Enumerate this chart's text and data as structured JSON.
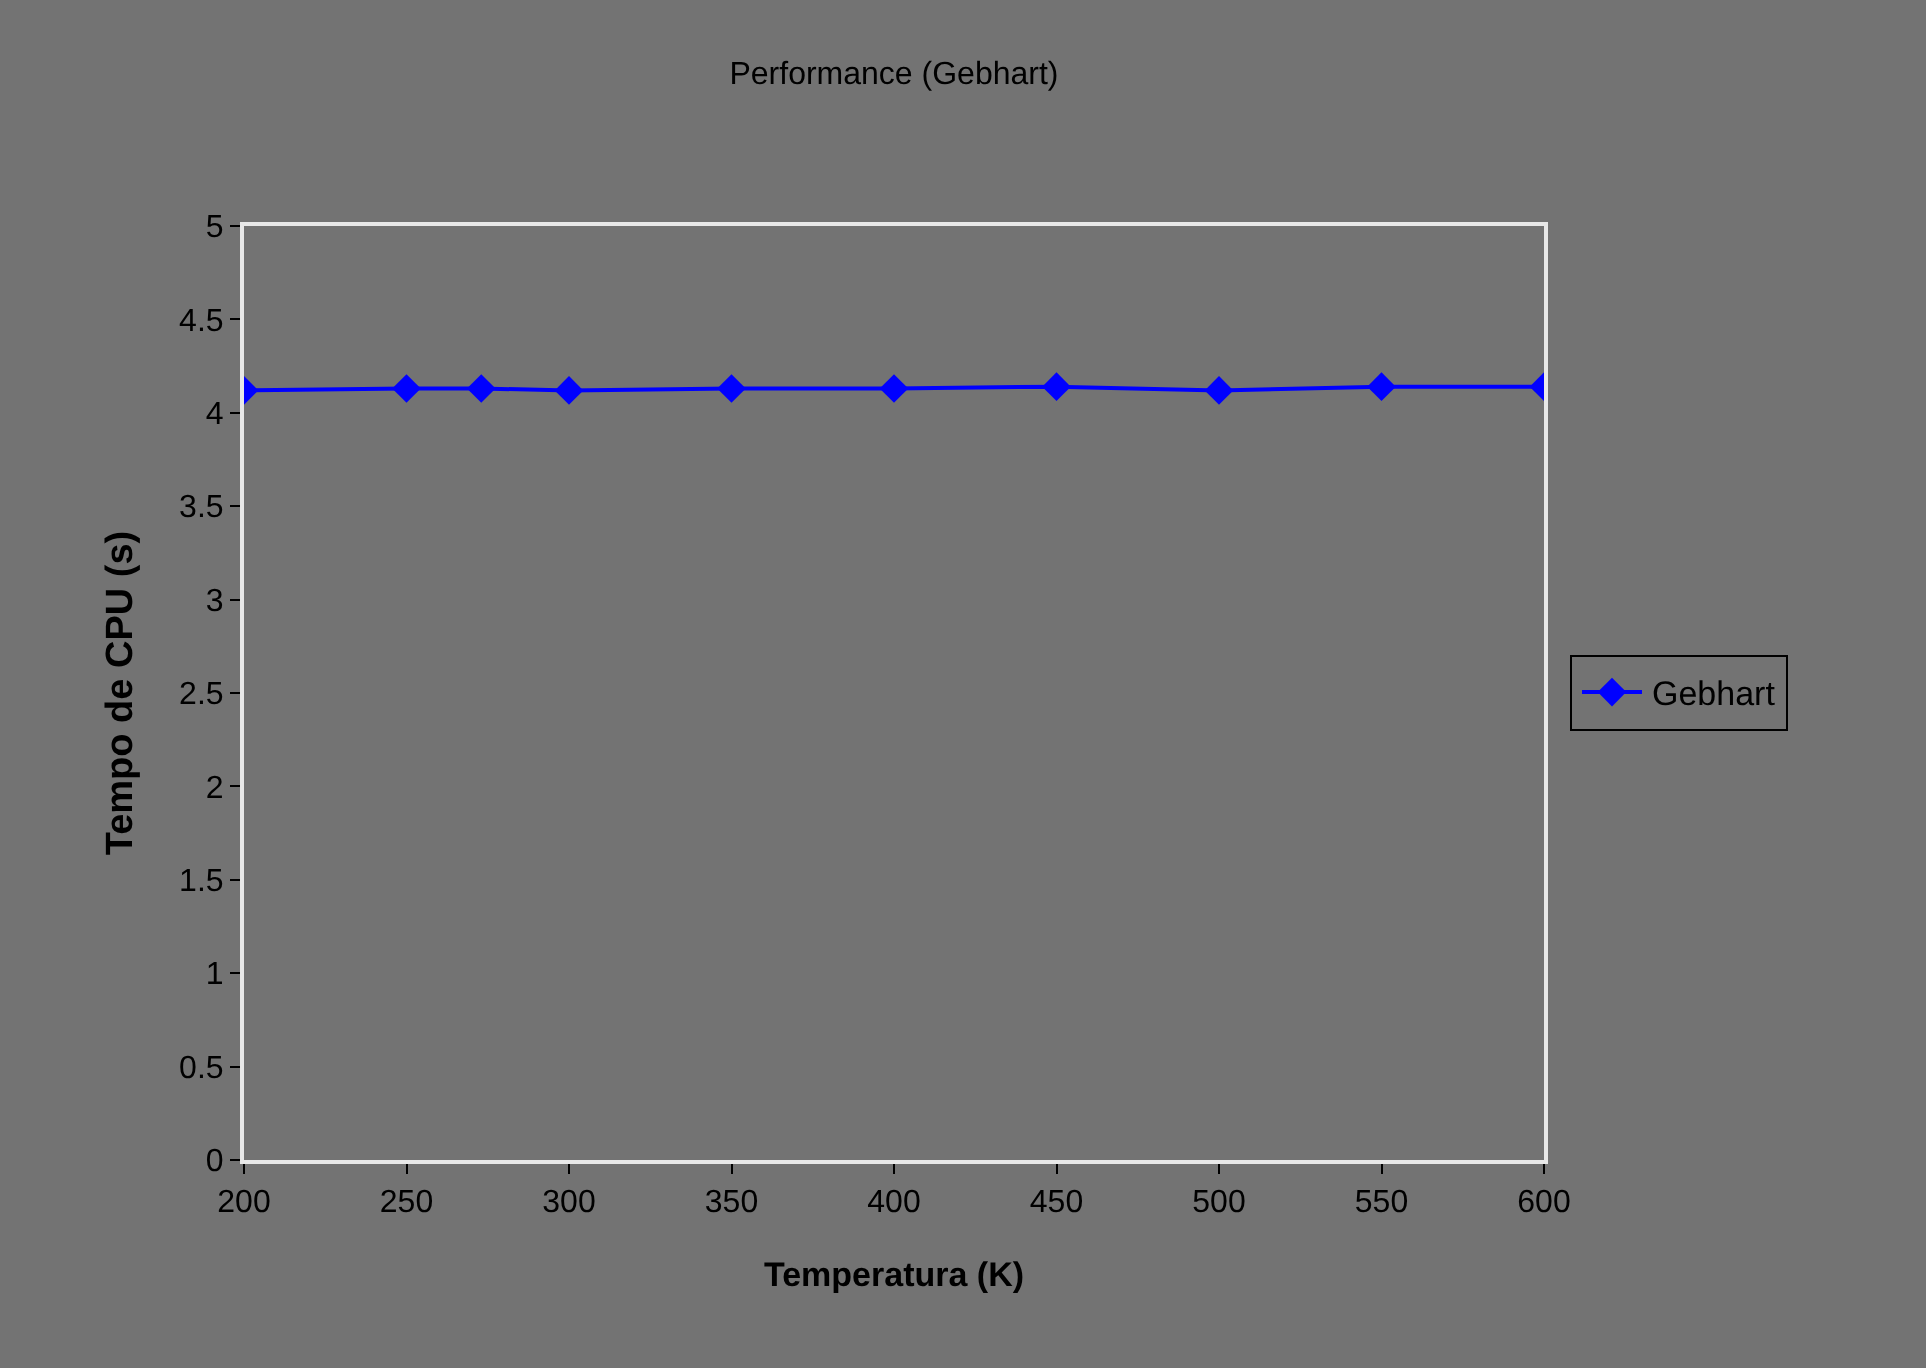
{
  "chart_data": {
    "type": "line",
    "title": "Performance (Gebhart)",
    "xlabel": "Temperatura (K)",
    "ylabel": "Tempo de CPU (s)",
    "x": [
      200,
      250,
      273,
      300,
      350,
      400,
      450,
      500,
      550,
      600
    ],
    "series": [
      {
        "name": "Gebhart",
        "color": "#0000ff",
        "values": [
          4.12,
          4.13,
          4.13,
          4.12,
          4.13,
          4.13,
          4.14,
          4.12,
          4.14,
          4.14
        ]
      }
    ],
    "xlim": [
      200,
      600
    ],
    "xticks": [
      200,
      250,
      300,
      350,
      400,
      450,
      500,
      550,
      600
    ],
    "ylim": [
      0,
      5
    ],
    "yticks": [
      0,
      0.5,
      1,
      1.5,
      2,
      2.5,
      3,
      3.5,
      4,
      4.5,
      5
    ],
    "grid": false,
    "legend": "right",
    "marker": "diamond",
    "line_style": "solid"
  }
}
